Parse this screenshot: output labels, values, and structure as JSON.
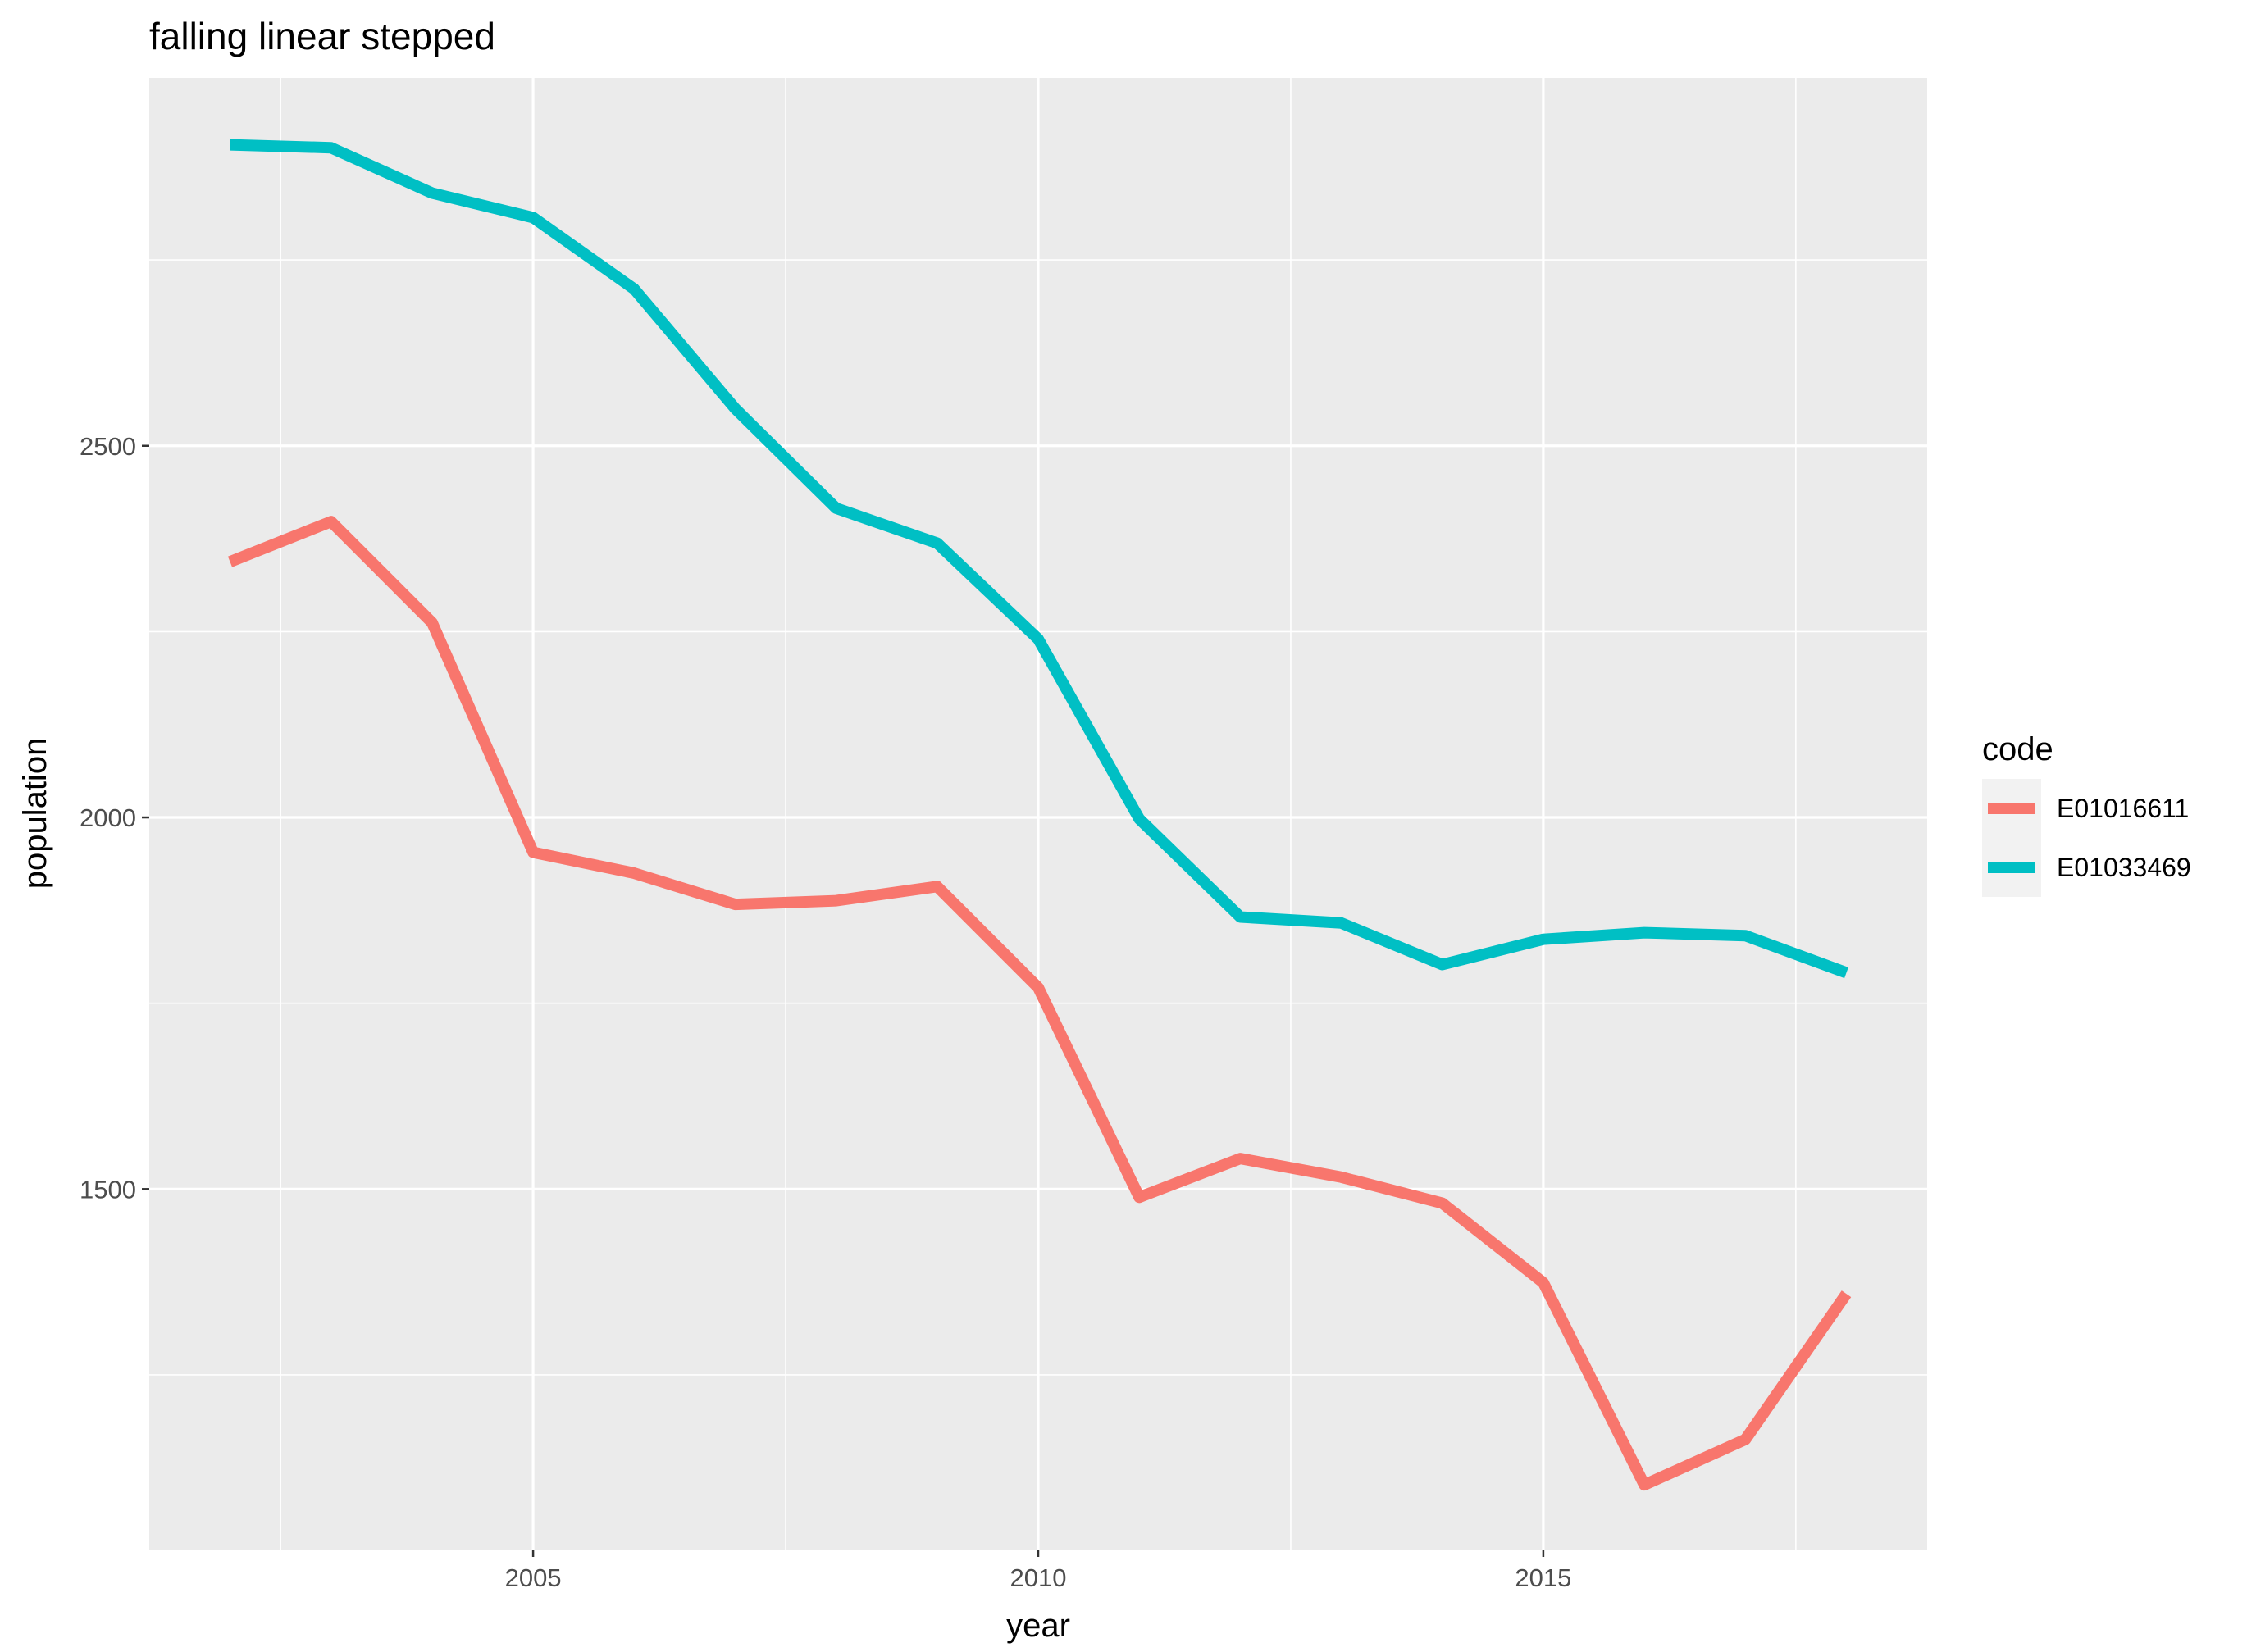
{
  "chart_data": {
    "type": "line",
    "title": "falling linear stepped",
    "xlabel": "year",
    "ylabel": "population",
    "x": [
      2002,
      2003,
      2004,
      2005,
      2006,
      2007,
      2008,
      2009,
      2010,
      2011,
      2012,
      2013,
      2014,
      2015,
      2016,
      2017,
      2018
    ],
    "xlim": [
      2001.2,
      2018.8
    ],
    "ylim": [
      1015,
      2995
    ],
    "x_ticks": [
      2005,
      2010,
      2015
    ],
    "x_tick_labels": [
      "2005",
      "2010",
      "2015"
    ],
    "y_ticks": [
      1500,
      2000,
      2500
    ],
    "y_tick_labels": [
      "1500",
      "2000",
      "2500"
    ],
    "grid": true,
    "legend": {
      "title": "code",
      "placement": "right"
    },
    "series": [
      {
        "name": "E01016611",
        "color": "#F8766D",
        "values": [
          2344,
          2398,
          2262,
          1953,
          1925,
          1883,
          1888,
          1907,
          1771,
          1489,
          1541,
          1516,
          1481,
          1374,
          1102,
          1163,
          1359
        ]
      },
      {
        "name": "E01033469",
        "color": "#00BFC4",
        "values": [
          2905,
          2901,
          2840,
          2807,
          2711,
          2550,
          2416,
          2369,
          2240,
          1998,
          1866,
          1858,
          1802,
          1836,
          1845,
          1841,
          1791
        ]
      }
    ]
  }
}
